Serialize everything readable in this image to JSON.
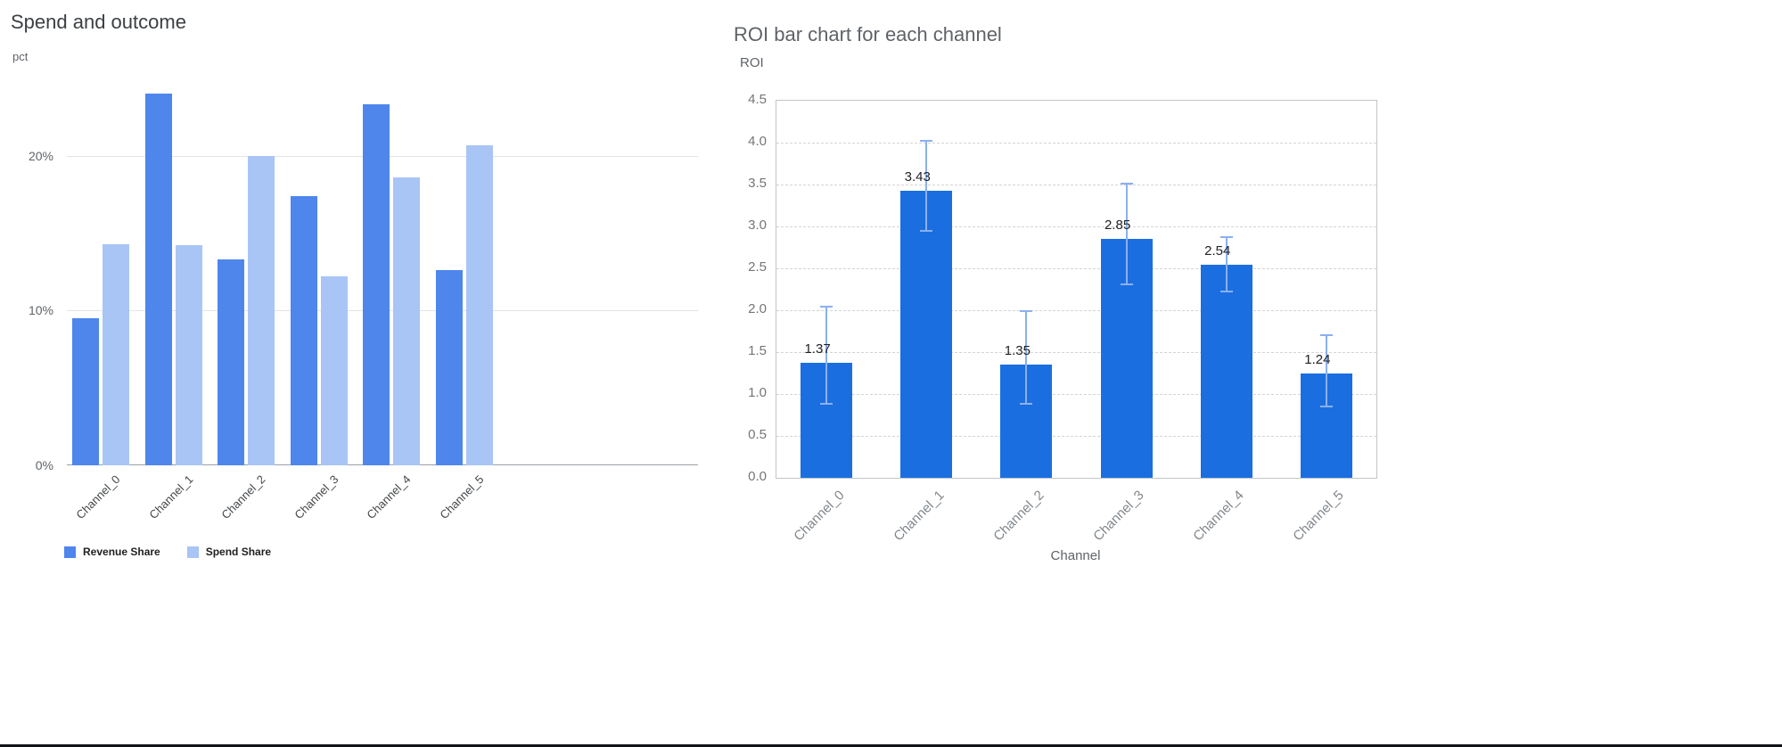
{
  "page": {
    "background": "#ffffff"
  },
  "chart_data": [
    {
      "type": "bar",
      "title": "Spend and outcome",
      "ylabel": "pct",
      "xlabel": "",
      "categories": [
        "Channel_0",
        "Channel_1",
        "Channel_2",
        "Channel_3",
        "Channel_4",
        "Channel_5"
      ],
      "series": [
        {
          "name": "Revenue Share",
          "color": "#4e86ec",
          "values": [
            9.5,
            24.0,
            13.3,
            17.4,
            23.3,
            12.6
          ]
        },
        {
          "name": "Spend Share",
          "color": "#a8c5f6",
          "values": [
            14.3,
            14.2,
            20.0,
            12.2,
            18.6,
            20.7
          ]
        }
      ],
      "value_unit": "percent",
      "ylim": [
        0,
        24.3
      ],
      "yticks": [
        0,
        10,
        20
      ],
      "ytick_labels": [
        "0%",
        "10%",
        "20%"
      ],
      "grid": "solid",
      "legend_position": "bottom"
    },
    {
      "type": "bar",
      "title": "ROI bar chart for each channel",
      "ylabel": "ROI",
      "xlabel": "Channel",
      "categories": [
        "Channel_0",
        "Channel_1",
        "Channel_2",
        "Channel_3",
        "Channel_4",
        "Channel_5"
      ],
      "values": [
        1.37,
        3.43,
        1.35,
        2.85,
        2.54,
        1.24
      ],
      "data_labels": [
        "1.37",
        "3.43",
        "1.35",
        "2.85",
        "2.54",
        "1.24"
      ],
      "error_low": [
        0.88,
        2.95,
        0.88,
        2.31,
        2.22,
        0.85
      ],
      "error_high": [
        2.04,
        4.02,
        1.99,
        3.51,
        2.87,
        1.7
      ],
      "bar_color": "#1a6ee0",
      "error_color": "#8ab0f0",
      "ylim": [
        0,
        4.5
      ],
      "yticks": [
        0,
        0.5,
        1,
        1.5,
        2,
        2.5,
        3,
        3.5,
        4,
        4.5
      ],
      "ytick_labels": [
        "0.0",
        "0.5",
        "1.0",
        "1.5",
        "2.0",
        "2.5",
        "3.0",
        "3.5",
        "4.0",
        "4.5"
      ],
      "grid": "dashed",
      "legend_position": "none"
    }
  ]
}
